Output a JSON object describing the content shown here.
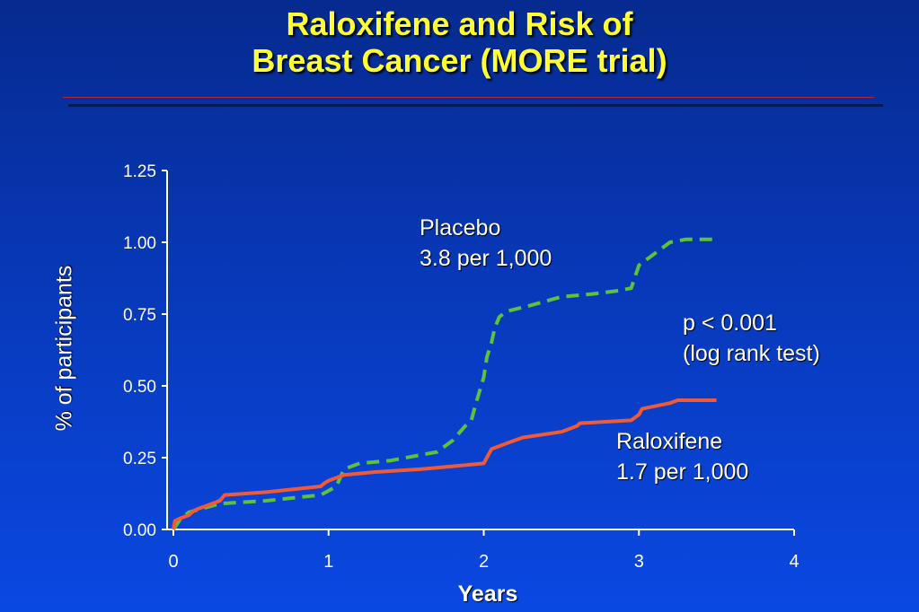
{
  "title": {
    "line1": "Raloxifene and Risk of",
    "line2": "Breast Cancer (MORE trial)"
  },
  "annotations": {
    "placebo_name": "Placebo",
    "placebo_rate": "3.8 per 1,000",
    "pvalue": "p < 0.001",
    "test": "(log rank test)",
    "raloxifene_name": "Raloxifene",
    "raloxifene_rate": "1.7 per 1,000"
  },
  "chart_data": {
    "type": "line",
    "xlabel": "Years",
    "ylabel": "% of participants",
    "xlim": [
      0,
      4
    ],
    "ylim": [
      0,
      1.25
    ],
    "xticks": [
      "0",
      "1",
      "2",
      "3",
      "4"
    ],
    "yticks": [
      "0.00",
      "0.25",
      "0.50",
      "0.75",
      "1.00",
      "1.25"
    ],
    "grid": false,
    "series": [
      {
        "name": "Placebo",
        "style": "dashed",
        "color": "#5cc23a",
        "x": [
          0,
          0.05,
          0.1,
          0.3,
          0.6,
          0.95,
          1.05,
          1.1,
          1.2,
          1.4,
          1.6,
          1.7,
          1.8,
          1.88,
          1.92,
          1.95,
          2.0,
          2.02,
          2.05,
          2.07,
          2.1,
          2.15,
          2.3,
          2.5,
          2.7,
          2.85,
          2.95,
          3.0,
          3.1,
          3.2,
          3.3,
          3.5
        ],
        "y": [
          0.0,
          0.04,
          0.06,
          0.09,
          0.1,
          0.12,
          0.15,
          0.21,
          0.23,
          0.24,
          0.26,
          0.27,
          0.31,
          0.36,
          0.38,
          0.44,
          0.53,
          0.6,
          0.65,
          0.7,
          0.74,
          0.76,
          0.78,
          0.81,
          0.82,
          0.83,
          0.84,
          0.92,
          0.96,
          1.0,
          1.01,
          1.01
        ]
      },
      {
        "name": "Raloxifene",
        "style": "solid",
        "color": "#f05a36",
        "x": [
          0,
          0.01,
          0.05,
          0.1,
          0.12,
          0.15,
          0.25,
          0.3,
          0.33,
          0.6,
          0.95,
          0.97,
          1.0,
          1.1,
          1.3,
          1.6,
          1.8,
          2.0,
          2.05,
          2.2,
          2.25,
          2.5,
          2.6,
          2.62,
          2.95,
          3.0,
          3.02,
          3.2,
          3.25,
          3.5
        ],
        "y": [
          0.0,
          0.03,
          0.04,
          0.05,
          0.06,
          0.07,
          0.09,
          0.1,
          0.12,
          0.13,
          0.15,
          0.16,
          0.17,
          0.19,
          0.2,
          0.21,
          0.22,
          0.23,
          0.28,
          0.31,
          0.32,
          0.34,
          0.36,
          0.37,
          0.38,
          0.4,
          0.42,
          0.44,
          0.45,
          0.45
        ]
      }
    ]
  }
}
